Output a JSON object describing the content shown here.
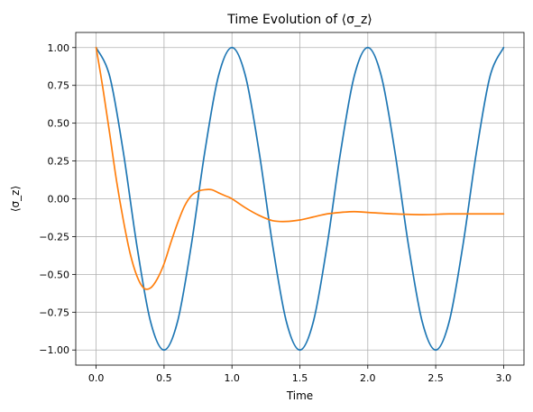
{
  "chart_data": {
    "type": "line",
    "title": "Time Evolution of ⟨σ_z⟩",
    "xlabel": "Time",
    "ylabel": "⟨σ_z⟩",
    "xlim": [
      -0.15,
      3.15
    ],
    "ylim": [
      -1.1,
      1.1
    ],
    "grid": true,
    "x_ticks": [
      {
        "value": 0.0,
        "label": "0.0"
      },
      {
        "value": 0.5,
        "label": "0.5"
      },
      {
        "value": 1.0,
        "label": "1.0"
      },
      {
        "value": 1.5,
        "label": "1.5"
      },
      {
        "value": 2.0,
        "label": "2.0"
      },
      {
        "value": 2.5,
        "label": "2.5"
      },
      {
        "value": 3.0,
        "label": "3.0"
      }
    ],
    "y_ticks": [
      {
        "value": 1.0,
        "label": "1.00"
      },
      {
        "value": 0.75,
        "label": "0.75"
      },
      {
        "value": 0.5,
        "label": "0.50"
      },
      {
        "value": 0.25,
        "label": "0.25"
      },
      {
        "value": 0.0,
        "label": "0.00"
      },
      {
        "value": -0.25,
        "label": "−0.25"
      },
      {
        "value": -0.5,
        "label": "−0.50"
      },
      {
        "value": -0.75,
        "label": "−0.75"
      },
      {
        "value": -1.0,
        "label": "−1.00"
      }
    ],
    "series": [
      {
        "color": "#1f77b4",
        "x": [
          0.0,
          0.1,
          0.2,
          0.3,
          0.4,
          0.5,
          0.6,
          0.7,
          0.8,
          0.9,
          1.0,
          1.1,
          1.2,
          1.3,
          1.4,
          1.5,
          1.6,
          1.7,
          1.8,
          1.9,
          2.0,
          2.1,
          2.2,
          2.3,
          2.4,
          2.5,
          2.6,
          2.7,
          2.8,
          2.9,
          3.0
        ],
        "y": [
          1.0,
          0.81,
          0.31,
          -0.31,
          -0.81,
          -1.0,
          -0.81,
          -0.31,
          0.31,
          0.81,
          1.0,
          0.81,
          0.31,
          -0.31,
          -0.81,
          -1.0,
          -0.81,
          -0.31,
          0.31,
          0.81,
          1.0,
          0.81,
          0.31,
          -0.31,
          -0.81,
          -1.0,
          -0.81,
          -0.31,
          0.31,
          0.81,
          1.0
        ]
      },
      {
        "color": "#ff7f0e",
        "x": [
          0.0,
          0.05,
          0.1,
          0.15,
          0.2,
          0.25,
          0.3,
          0.35,
          0.4,
          0.45,
          0.5,
          0.55,
          0.6,
          0.65,
          0.7,
          0.75,
          0.8,
          0.85,
          0.9,
          0.95,
          1.0,
          1.1,
          1.2,
          1.3,
          1.4,
          1.5,
          1.6,
          1.7,
          1.8,
          1.9,
          2.0,
          2.2,
          2.4,
          2.6,
          2.8,
          3.0
        ],
        "y": [
          1.0,
          0.73,
          0.43,
          0.12,
          -0.14,
          -0.36,
          -0.51,
          -0.59,
          -0.59,
          -0.53,
          -0.43,
          -0.29,
          -0.16,
          -0.05,
          0.02,
          0.05,
          0.06,
          0.06,
          0.04,
          0.02,
          0.0,
          -0.06,
          -0.11,
          -0.145,
          -0.15,
          -0.14,
          -0.12,
          -0.1,
          -0.09,
          -0.085,
          -0.09,
          -0.1,
          -0.105,
          -0.1,
          -0.1,
          -0.1
        ]
      }
    ]
  }
}
